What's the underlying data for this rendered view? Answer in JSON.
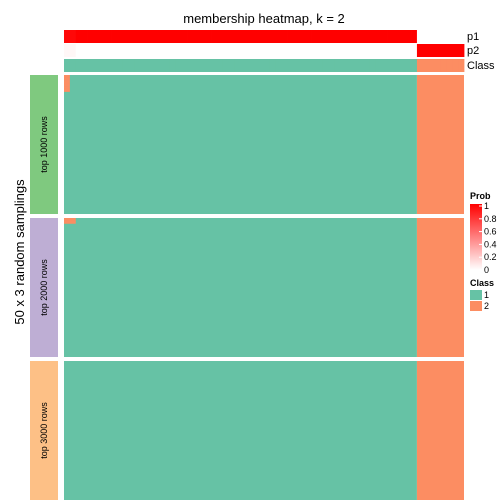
{
  "chart_data": {
    "type": "heatmap",
    "title": "membership heatmap, k = 2",
    "ylabel": "50 x 3 random samplings",
    "n_samples": 68,
    "sample_class": [
      1,
      1,
      1,
      1,
      1,
      1,
      1,
      1,
      1,
      1,
      1,
      1,
      1,
      1,
      1,
      1,
      1,
      1,
      1,
      1,
      1,
      1,
      1,
      1,
      1,
      1,
      1,
      1,
      1,
      1,
      1,
      1,
      1,
      1,
      1,
      1,
      1,
      1,
      1,
      1,
      1,
      1,
      1,
      1,
      1,
      1,
      1,
      1,
      1,
      1,
      1,
      1,
      1,
      1,
      1,
      1,
      1,
      1,
      1,
      1,
      2,
      2,
      2,
      2,
      2,
      2,
      2,
      2
    ],
    "annotation_rows": [
      {
        "name": "p1",
        "values": [
          0.97,
          0.97,
          1,
          1,
          1,
          1,
          1,
          1,
          1,
          1,
          1,
          1,
          1,
          1,
          1,
          1,
          1,
          1,
          1,
          1,
          1,
          1,
          1,
          1,
          1,
          1,
          1,
          1,
          1,
          1,
          1,
          1,
          1,
          1,
          1,
          1,
          1,
          1,
          1,
          1,
          1,
          1,
          1,
          1,
          1,
          1,
          1,
          1,
          1,
          1,
          1,
          1,
          1,
          1,
          1,
          1,
          1,
          1,
          1,
          1,
          0,
          0,
          0,
          0,
          0,
          0,
          0,
          0
        ]
      },
      {
        "name": "p2",
        "values": [
          0.03,
          0.03,
          0,
          0,
          0,
          0,
          0,
          0,
          0,
          0,
          0,
          0,
          0,
          0,
          0,
          0,
          0,
          0,
          0,
          0,
          0,
          0,
          0,
          0,
          0,
          0,
          0,
          0,
          0,
          0,
          0,
          0,
          0,
          0,
          0,
          0,
          0,
          0,
          0,
          0,
          0,
          0,
          0,
          0,
          0,
          0,
          0,
          0,
          0,
          0,
          0,
          0,
          0,
          0,
          0,
          0,
          0,
          0,
          0,
          0,
          1,
          1,
          1,
          1,
          1,
          1,
          1,
          1
        ]
      },
      {
        "name": "Class",
        "values": [
          1,
          1,
          1,
          1,
          1,
          1,
          1,
          1,
          1,
          1,
          1,
          1,
          1,
          1,
          1,
          1,
          1,
          1,
          1,
          1,
          1,
          1,
          1,
          1,
          1,
          1,
          1,
          1,
          1,
          1,
          1,
          1,
          1,
          1,
          1,
          1,
          1,
          1,
          1,
          1,
          1,
          1,
          1,
          1,
          1,
          1,
          1,
          1,
          1,
          1,
          1,
          1,
          1,
          1,
          1,
          1,
          1,
          1,
          1,
          1,
          2,
          2,
          2,
          2,
          2,
          2,
          2,
          2
        ]
      }
    ],
    "row_groups": [
      {
        "label": "top 1000 rows",
        "color": "#7FC97F",
        "n_rows": 50
      },
      {
        "label": "top 2000 rows",
        "color": "#BEAED4",
        "n_rows": 50
      },
      {
        "label": "top 3000 rows",
        "color": "#FDC086",
        "n_rows": 50
      }
    ],
    "deviations": [
      {
        "group": 0,
        "row": 0,
        "start": 0,
        "end": 1,
        "class": 2
      },
      {
        "group": 0,
        "row": 1,
        "start": 0,
        "end": 1,
        "class": 2
      },
      {
        "group": 0,
        "row": 2,
        "start": 0,
        "end": 1,
        "class": 2
      },
      {
        "group": 0,
        "row": 3,
        "start": 0,
        "end": 1,
        "class": 2
      },
      {
        "group": 0,
        "row": 4,
        "start": 0,
        "end": 1,
        "class": 2
      },
      {
        "group": 0,
        "row": 5,
        "start": 0,
        "end": 1,
        "class": 2
      },
      {
        "group": 1,
        "row": 0,
        "start": 0,
        "end": 2,
        "class": 2
      },
      {
        "group": 1,
        "row": 1,
        "start": 0,
        "end": 2,
        "class": 2
      }
    ],
    "class_colors": {
      "1": "#66C2A5",
      "2": "#FC8D62"
    },
    "prob_colors": {
      "low": "#FFFFFF",
      "high": "#FF0000"
    },
    "legend": {
      "prob": {
        "title": "Prob",
        "ticks": [
          "1",
          "0.8",
          "0.6",
          "0.4",
          "0.2",
          "0"
        ]
      },
      "class": {
        "title": "Class",
        "entries": [
          {
            "label": "1",
            "color": "#66C2A5"
          },
          {
            "label": "2",
            "color": "#FC8D62"
          }
        ]
      },
      "position": "right"
    }
  }
}
